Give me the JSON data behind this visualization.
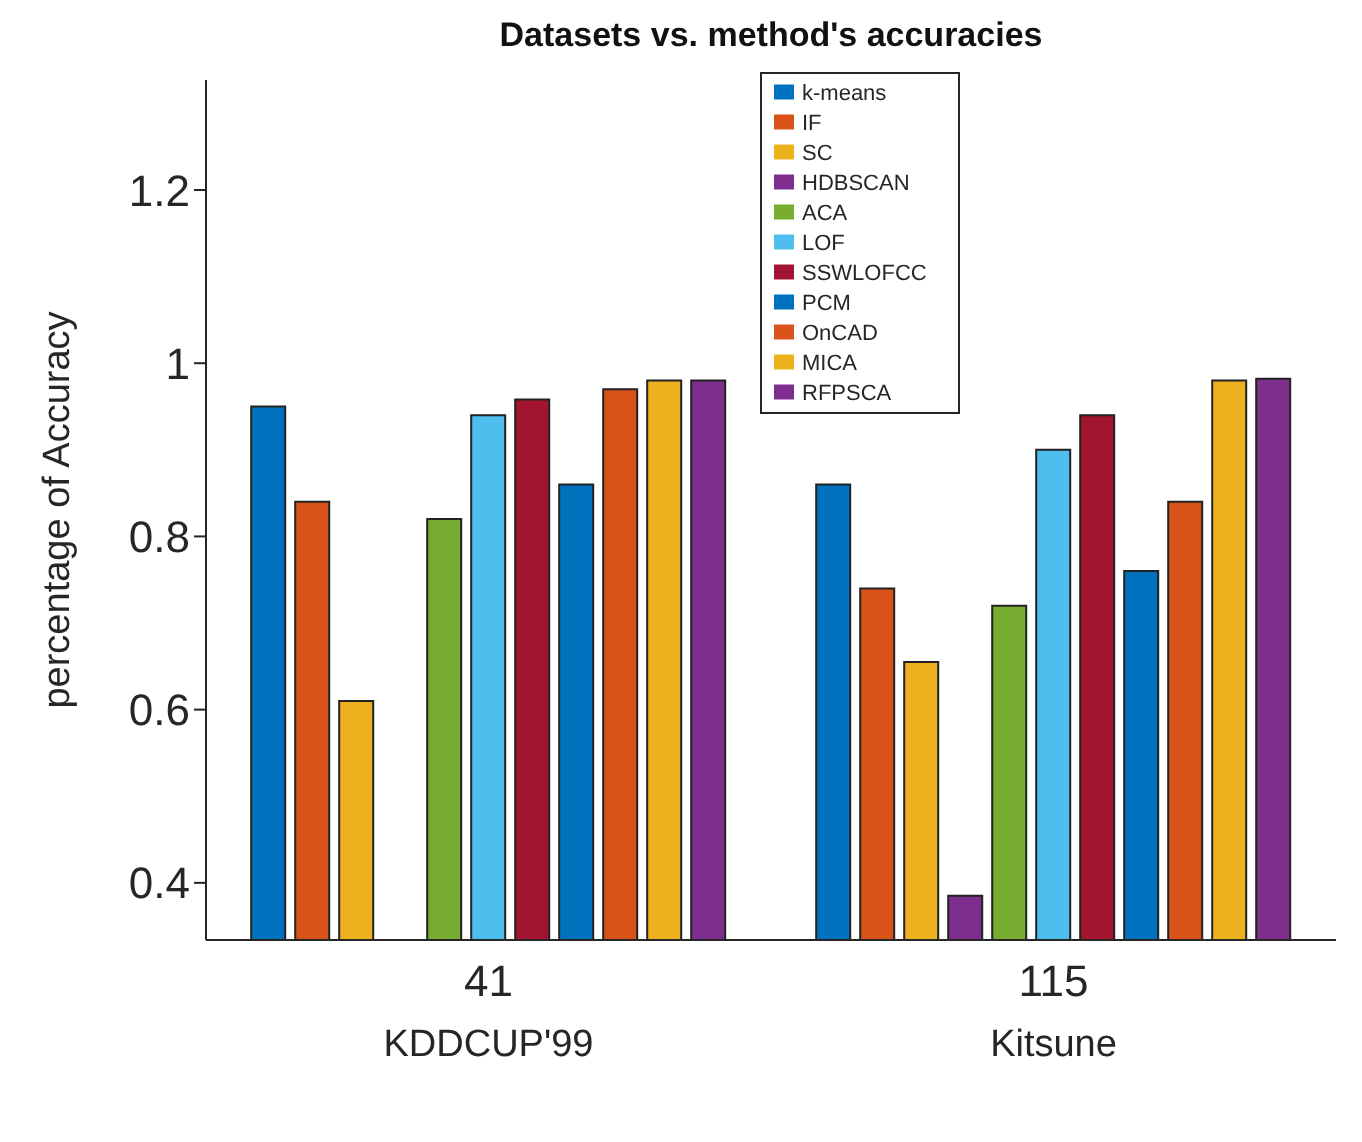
{
  "chart_data": {
    "type": "bar",
    "title": "Datasets vs. method's accuracies",
    "ylabel": "percentage of Accuracy",
    "categories": [
      "41\nKDDCUP'99",
      "115\nKitsune"
    ],
    "series": [
      {
        "name": "k-means",
        "color": "#0072bd",
        "values": [
          0.95,
          0.86
        ]
      },
      {
        "name": "IF",
        "color": "#d95319",
        "values": [
          0.84,
          0.74
        ]
      },
      {
        "name": "SC",
        "color": "#edb120",
        "values": [
          0.61,
          0.655
        ]
      },
      {
        "name": "HDBSCAN",
        "color": "#7e2f8e",
        "values": [
          null,
          0.385
        ]
      },
      {
        "name": "ACA",
        "color": "#77ac30",
        "values": [
          0.82,
          0.72
        ]
      },
      {
        "name": "LOF",
        "color": "#4dbeee",
        "values": [
          0.94,
          0.9
        ]
      },
      {
        "name": "SSWLOFCC",
        "color": "#a2142f",
        "values": [
          0.958,
          0.94
        ]
      },
      {
        "name": "PCM",
        "color": "#0072bd",
        "values": [
          0.86,
          0.76
        ]
      },
      {
        "name": "OnCAD",
        "color": "#d95319",
        "values": [
          0.97,
          0.84
        ]
      },
      {
        "name": "MICA",
        "color": "#edb120",
        "values": [
          0.98,
          0.98
        ]
      },
      {
        "name": "RFPSCA",
        "color": "#7e2f8e",
        "values": [
          0.98,
          0.982
        ]
      }
    ],
    "ylim": [
      0.334,
      1.327
    ],
    "yticks": [
      0.4,
      0.6,
      0.8,
      1,
      1.2
    ],
    "grid": false,
    "legend": "top"
  }
}
